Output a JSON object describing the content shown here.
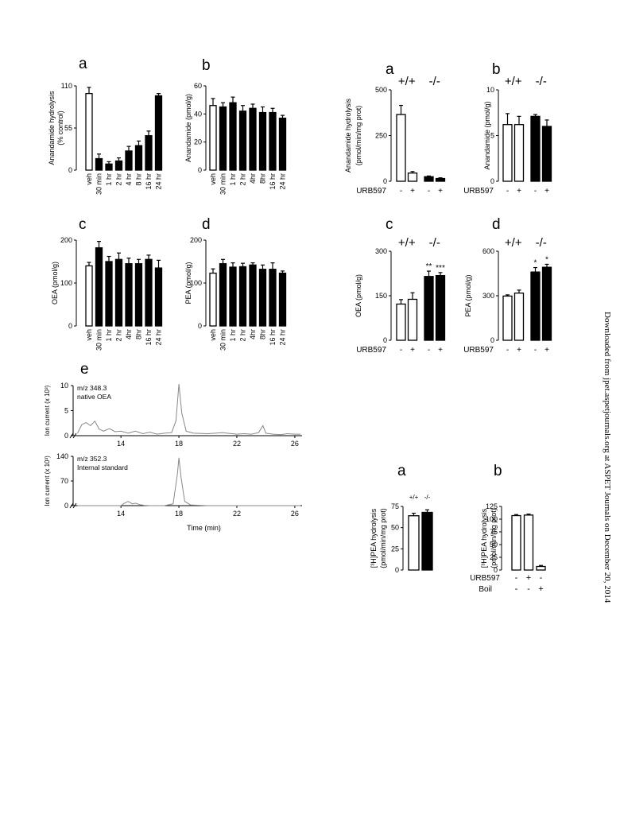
{
  "watermark": "Downloaded from jpet.aspetjournals.org at ASPET Journals on December 20, 2014",
  "x_labels_time": [
    "veh",
    "30 min",
    "1 hr",
    "2 hr",
    "4 hr",
    "8 hr",
    "16 hr",
    "24 hr"
  ],
  "x_labels_time_b": [
    "veh",
    "30 min",
    "1 hr",
    "2 hr",
    "4hr",
    "8hr",
    "16 hr",
    "24 hr"
  ],
  "genotypes": [
    "+/+",
    "-/-"
  ],
  "urb_label": "URB597",
  "boil_label": "Boil",
  "pm": [
    "-",
    "+",
    "-",
    "+"
  ],
  "fig3b_urb": [
    "-",
    "+",
    "-"
  ],
  "fig3b_boil": [
    "-",
    "-",
    "+"
  ],
  "sig_c": [
    "**",
    "***"
  ],
  "sig_d": [
    "*",
    "*"
  ],
  "chart_data": [
    {
      "id": "fig1a",
      "panel": "a",
      "type": "bar",
      "ylabel": "Anandamide hydrolysis\n(% control)",
      "yticks": [
        0,
        55,
        110
      ],
      "ylim": [
        0,
        110
      ],
      "categories": [
        "veh",
        "30 min",
        "1 hr",
        "2 hr",
        "4 hr",
        "8 hr",
        "16 hr",
        "24 hr"
      ],
      "values": [
        100,
        15,
        8,
        12,
        25,
        32,
        45,
        97
      ],
      "errors": [
        8,
        6,
        3,
        4,
        6,
        6,
        6,
        3
      ],
      "fills": [
        "white",
        "black",
        "black",
        "black",
        "black",
        "black",
        "black",
        "black"
      ]
    },
    {
      "id": "fig1b",
      "panel": "b",
      "type": "bar",
      "ylabel": "Anandamide (pmol/g)",
      "yticks": [
        0,
        20,
        40,
        60
      ],
      "ylim": [
        0,
        60
      ],
      "categories": [
        "veh",
        "30 min",
        "1 hr",
        "2 hr",
        "4hr",
        "8hr",
        "16 hr",
        "24 hr"
      ],
      "values": [
        46,
        45,
        48,
        42,
        44,
        41,
        41,
        37
      ],
      "errors": [
        5,
        3,
        4,
        4,
        3,
        4,
        3,
        2
      ],
      "fills": [
        "white",
        "black",
        "black",
        "black",
        "black",
        "black",
        "black",
        "black"
      ]
    },
    {
      "id": "fig1c",
      "panel": "c",
      "type": "bar",
      "ylabel": "OEA (pmol/g)",
      "yticks": [
        0,
        100,
        200
      ],
      "ylim": [
        0,
        200
      ],
      "categories": [
        "veh",
        "30 min",
        "1 hr",
        "2 hr",
        "4hr",
        "8hr",
        "16 hr",
        "24 hr"
      ],
      "values": [
        140,
        182,
        150,
        155,
        145,
        145,
        155,
        135
      ],
      "errors": [
        8,
        15,
        12,
        15,
        13,
        10,
        10,
        18
      ],
      "fills": [
        "white",
        "black",
        "black",
        "black",
        "black",
        "black",
        "black",
        "black"
      ]
    },
    {
      "id": "fig1d",
      "panel": "d",
      "type": "bar",
      "ylabel": "PEA (pmol/g)",
      "yticks": [
        0,
        100,
        200
      ],
      "ylim": [
        0,
        200
      ],
      "categories": [
        "veh",
        "30 min",
        "1 hr",
        "2 hr",
        "4hr",
        "8hr",
        "16 hr",
        "24 hr"
      ],
      "values": [
        123,
        145,
        137,
        138,
        142,
        132,
        132,
        123
      ],
      "errors": [
        10,
        10,
        10,
        8,
        5,
        10,
        15,
        5
      ],
      "fills": [
        "white",
        "black",
        "black",
        "black",
        "black",
        "black",
        "black",
        "black"
      ]
    },
    {
      "id": "fig2a",
      "panel": "a",
      "type": "bar",
      "ylabel": "Anandamide hydrolysis\n(pmol/min/mg prot)",
      "yticks": [
        0,
        250,
        500
      ],
      "ylim": [
        0,
        500
      ],
      "values": [
        365,
        45,
        25,
        15
      ],
      "errors": [
        50,
        8,
        4,
        4
      ],
      "fills": [
        "white",
        "white",
        "black",
        "black"
      ]
    },
    {
      "id": "fig2b",
      "panel": "b",
      "type": "bar",
      "ylabel": "Anandamide (pmol/g)",
      "yticks": [
        0,
        5,
        10
      ],
      "ylim": [
        0,
        10
      ],
      "values": [
        6.2,
        6.2,
        7.1,
        6.0
      ],
      "errors": [
        1.2,
        0.9,
        0.2,
        0.7
      ],
      "fills": [
        "white",
        "white",
        "black",
        "black"
      ]
    },
    {
      "id": "fig2c",
      "panel": "c",
      "type": "bar",
      "ylabel": "OEA (pmol/g)",
      "yticks": [
        0,
        150,
        300
      ],
      "ylim": [
        0,
        300
      ],
      "values": [
        122,
        138,
        215,
        218
      ],
      "errors": [
        15,
        22,
        18,
        10
      ],
      "fills": [
        "white",
        "white",
        "black",
        "black"
      ]
    },
    {
      "id": "fig2d",
      "panel": "d",
      "type": "bar",
      "ylabel": "PEA (pmol/g)",
      "yticks": [
        0,
        300,
        600
      ],
      "ylim": [
        0,
        600
      ],
      "values": [
        298,
        318,
        460,
        492
      ],
      "errors": [
        8,
        20,
        30,
        20
      ],
      "fills": [
        "white",
        "white",
        "black",
        "black"
      ]
    },
    {
      "id": "fig3a",
      "panel": "a",
      "type": "bar",
      "ylabel": "[³H]PEA hydrolysis\n(pmol/min/mg prot)",
      "yticks": [
        0,
        25,
        50,
        75
      ],
      "ylim": [
        0,
        75
      ],
      "categories": [
        "+/+",
        "-/-"
      ],
      "values": [
        64,
        68
      ],
      "errors": [
        3,
        3
      ],
      "fills": [
        "white",
        "black"
      ]
    },
    {
      "id": "fig3b",
      "panel": "b",
      "type": "bar",
      "ylabel": "[³H]PEA hydrolysis\n(pmol/min/mg prot)",
      "yticks": [
        0,
        25,
        50,
        75,
        100,
        125
      ],
      "ylim": [
        0,
        125
      ],
      "values": [
        107,
        108,
        7
      ],
      "errors": [
        2,
        2,
        2
      ],
      "fills": [
        "white",
        "white",
        "white"
      ]
    },
    {
      "id": "fig1e",
      "panel": "e",
      "type": "line",
      "traces": [
        {
          "ylabel": "Ion current (x 10³)",
          "mz": "m/z 348.3",
          "name": "native OEA",
          "yticks": [
            0,
            5,
            10
          ],
          "ylim": [
            0,
            10
          ],
          "x": [
            11,
            11.3,
            11.6,
            11.9,
            12.2,
            12.5,
            12.8,
            13.2,
            13.6,
            14,
            14.5,
            15,
            15.5,
            16,
            16.5,
            17,
            17.5,
            17.8,
            18,
            18.2,
            18.5,
            19,
            20,
            21,
            22,
            22.5,
            23,
            23.5,
            23.8,
            24,
            24.5,
            25,
            25.5,
            26,
            26.4
          ],
          "y": [
            0.5,
            2.2,
            2.6,
            2.0,
            2.9,
            1.3,
            0.9,
            1.4,
            0.8,
            0.9,
            0.5,
            0.9,
            0.4,
            0.7,
            0.3,
            0.5,
            0.6,
            3.0,
            10.3,
            4.5,
            0.9,
            0.5,
            0.4,
            0.6,
            0.3,
            0.4,
            0.3,
            0.6,
            2.0,
            0.5,
            0.3,
            0.2,
            0.4,
            0.3,
            0.3
          ]
        },
        {
          "ylabel": "Ion current (x 10³)",
          "mz": "m/z 352.3",
          "name": "Internal standard",
          "yticks": [
            0,
            70,
            140
          ],
          "ylim": [
            0,
            140
          ],
          "x": [
            11,
            12,
            13,
            14,
            14.2,
            14.5,
            14.8,
            15,
            15.3,
            15.6,
            16,
            17,
            17.6,
            17.9,
            18,
            18.15,
            18.4,
            18.8,
            20,
            22,
            24,
            26.4
          ],
          "y": [
            0,
            0,
            0,
            0,
            6,
            12,
            5,
            7,
            3,
            1,
            0,
            0,
            5,
            90,
            136,
            80,
            12,
            2,
            0,
            0,
            0,
            0
          ]
        }
      ],
      "xticks": [
        14,
        18,
        22,
        26
      ],
      "xlim": [
        10.7,
        26.5
      ],
      "xlabel": "Time (min)"
    }
  ]
}
